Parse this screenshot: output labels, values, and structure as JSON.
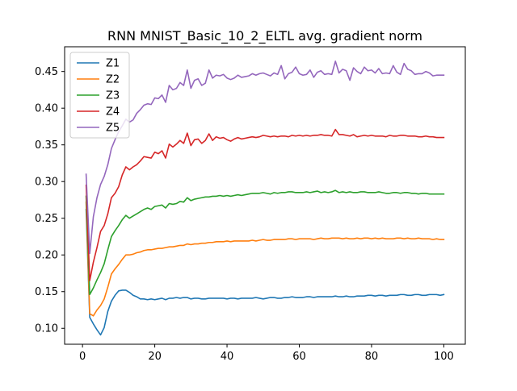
{
  "chart_data": {
    "type": "line",
    "title": "RNN MNIST_Basic_10_2_ELTL avg. gradient norm",
    "xlabel": "",
    "ylabel": "",
    "xlim": [
      -4.95,
      105.95
    ],
    "ylim": [
      0.0783,
      0.4837
    ],
    "x_ticks": [
      0,
      20,
      40,
      60,
      80,
      100
    ],
    "y_ticks": [
      0.1,
      0.15,
      0.2,
      0.25,
      0.3,
      0.35,
      0.4,
      0.45
    ],
    "x_tick_labels": [
      "0",
      "20",
      "40",
      "60",
      "80",
      "100"
    ],
    "y_tick_labels": [
      "0.10",
      "0.15",
      "0.20",
      "0.25",
      "0.30",
      "0.35",
      "0.40",
      "0.45"
    ],
    "legend_position": "upper-left",
    "grid": false,
    "x_start": 1,
    "series": [
      {
        "name": "Z1",
        "color": "#1f77b4",
        "values": [
          0.262,
          0.115,
          0.106,
          0.098,
          0.091,
          0.101,
          0.123,
          0.137,
          0.145,
          0.151,
          0.152,
          0.152,
          0.149,
          0.145,
          0.143,
          0.14,
          0.14,
          0.139,
          0.14,
          0.139,
          0.14,
          0.141,
          0.139,
          0.141,
          0.141,
          0.142,
          0.141,
          0.142,
          0.142,
          0.14,
          0.141,
          0.141,
          0.14,
          0.14,
          0.141,
          0.141,
          0.141,
          0.141,
          0.141,
          0.14,
          0.141,
          0.141,
          0.14,
          0.141,
          0.141,
          0.141,
          0.141,
          0.142,
          0.141,
          0.14,
          0.141,
          0.142,
          0.142,
          0.141,
          0.141,
          0.142,
          0.142,
          0.143,
          0.142,
          0.142,
          0.142,
          0.143,
          0.143,
          0.142,
          0.143,
          0.143,
          0.143,
          0.143,
          0.143,
          0.144,
          0.143,
          0.143,
          0.144,
          0.143,
          0.143,
          0.144,
          0.144,
          0.144,
          0.145,
          0.145,
          0.144,
          0.145,
          0.145,
          0.144,
          0.145,
          0.145,
          0.145,
          0.146,
          0.146,
          0.145,
          0.145,
          0.146,
          0.146,
          0.145,
          0.145,
          0.146,
          0.146,
          0.146,
          0.145,
          0.146
        ]
      },
      {
        "name": "Z2",
        "color": "#ff7f0e",
        "values": [
          0.272,
          0.12,
          0.117,
          0.125,
          0.131,
          0.14,
          0.156,
          0.174,
          0.181,
          0.187,
          0.194,
          0.2,
          0.2,
          0.201,
          0.203,
          0.204,
          0.206,
          0.207,
          0.207,
          0.208,
          0.209,
          0.209,
          0.21,
          0.211,
          0.211,
          0.212,
          0.213,
          0.213,
          0.215,
          0.214,
          0.215,
          0.215,
          0.216,
          0.216,
          0.217,
          0.217,
          0.218,
          0.218,
          0.218,
          0.219,
          0.218,
          0.219,
          0.219,
          0.219,
          0.219,
          0.219,
          0.22,
          0.219,
          0.22,
          0.221,
          0.22,
          0.22,
          0.221,
          0.221,
          0.221,
          0.221,
          0.222,
          0.222,
          0.221,
          0.222,
          0.222,
          0.222,
          0.222,
          0.221,
          0.222,
          0.223,
          0.222,
          0.222,
          0.223,
          0.223,
          0.223,
          0.222,
          0.223,
          0.222,
          0.222,
          0.223,
          0.222,
          0.223,
          0.223,
          0.222,
          0.223,
          0.222,
          0.223,
          0.222,
          0.222,
          0.222,
          0.223,
          0.223,
          0.222,
          0.223,
          0.222,
          0.222,
          0.223,
          0.222,
          0.222,
          0.222,
          0.221,
          0.222,
          0.221,
          0.221
        ]
      },
      {
        "name": "Z3",
        "color": "#2ca02c",
        "values": [
          0.28,
          0.146,
          0.155,
          0.166,
          0.176,
          0.188,
          0.207,
          0.225,
          0.233,
          0.24,
          0.248,
          0.254,
          0.25,
          0.253,
          0.256,
          0.259,
          0.262,
          0.264,
          0.262,
          0.266,
          0.267,
          0.268,
          0.264,
          0.27,
          0.269,
          0.27,
          0.273,
          0.272,
          0.278,
          0.274,
          0.276,
          0.277,
          0.278,
          0.279,
          0.279,
          0.28,
          0.28,
          0.281,
          0.28,
          0.281,
          0.28,
          0.281,
          0.282,
          0.281,
          0.282,
          0.283,
          0.284,
          0.284,
          0.284,
          0.285,
          0.284,
          0.283,
          0.285,
          0.284,
          0.285,
          0.285,
          0.286,
          0.286,
          0.285,
          0.285,
          0.285,
          0.286,
          0.285,
          0.286,
          0.287,
          0.285,
          0.286,
          0.285,
          0.286,
          0.288,
          0.285,
          0.286,
          0.285,
          0.286,
          0.285,
          0.285,
          0.286,
          0.286,
          0.285,
          0.285,
          0.285,
          0.286,
          0.285,
          0.284,
          0.284,
          0.285,
          0.285,
          0.284,
          0.285,
          0.285,
          0.284,
          0.284,
          0.283,
          0.284,
          0.284,
          0.283,
          0.283,
          0.283,
          0.283,
          0.283
        ]
      },
      {
        "name": "Z4",
        "color": "#d62728",
        "values": [
          0.295,
          0.165,
          0.19,
          0.21,
          0.232,
          0.24,
          0.256,
          0.278,
          0.284,
          0.293,
          0.309,
          0.32,
          0.316,
          0.32,
          0.323,
          0.328,
          0.334,
          0.333,
          0.332,
          0.34,
          0.338,
          0.342,
          0.332,
          0.351,
          0.347,
          0.351,
          0.356,
          0.352,
          0.366,
          0.349,
          0.357,
          0.358,
          0.352,
          0.356,
          0.365,
          0.356,
          0.361,
          0.359,
          0.36,
          0.357,
          0.355,
          0.358,
          0.36,
          0.358,
          0.359,
          0.36,
          0.361,
          0.36,
          0.361,
          0.363,
          0.362,
          0.361,
          0.362,
          0.361,
          0.362,
          0.362,
          0.361,
          0.363,
          0.362,
          0.363,
          0.362,
          0.363,
          0.362,
          0.363,
          0.363,
          0.364,
          0.363,
          0.363,
          0.362,
          0.371,
          0.364,
          0.364,
          0.363,
          0.362,
          0.364,
          0.361,
          0.362,
          0.363,
          0.362,
          0.363,
          0.362,
          0.362,
          0.362,
          0.361,
          0.363,
          0.362,
          0.362,
          0.363,
          0.363,
          0.362,
          0.362,
          0.362,
          0.361,
          0.361,
          0.362,
          0.361,
          0.361,
          0.36,
          0.36,
          0.36
        ]
      },
      {
        "name": "Z5",
        "color": "#9467bd",
        "values": [
          0.31,
          0.202,
          0.252,
          0.278,
          0.296,
          0.307,
          0.323,
          0.345,
          0.357,
          0.368,
          0.376,
          0.385,
          0.381,
          0.384,
          0.393,
          0.398,
          0.404,
          0.406,
          0.405,
          0.414,
          0.413,
          0.418,
          0.408,
          0.431,
          0.425,
          0.427,
          0.435,
          0.431,
          0.452,
          0.427,
          0.438,
          0.44,
          0.431,
          0.434,
          0.452,
          0.441,
          0.445,
          0.444,
          0.446,
          0.441,
          0.439,
          0.441,
          0.445,
          0.442,
          0.443,
          0.444,
          0.447,
          0.445,
          0.447,
          0.448,
          0.446,
          0.444,
          0.448,
          0.446,
          0.458,
          0.44,
          0.447,
          0.449,
          0.456,
          0.447,
          0.445,
          0.446,
          0.452,
          0.442,
          0.449,
          0.451,
          0.446,
          0.447,
          0.446,
          0.464,
          0.448,
          0.453,
          0.451,
          0.438,
          0.455,
          0.45,
          0.447,
          0.456,
          0.451,
          0.452,
          0.448,
          0.454,
          0.447,
          0.448,
          0.447,
          0.458,
          0.449,
          0.446,
          0.461,
          0.453,
          0.451,
          0.446,
          0.447,
          0.447,
          0.45,
          0.448,
          0.444,
          0.445,
          0.445,
          0.445
        ]
      }
    ]
  }
}
